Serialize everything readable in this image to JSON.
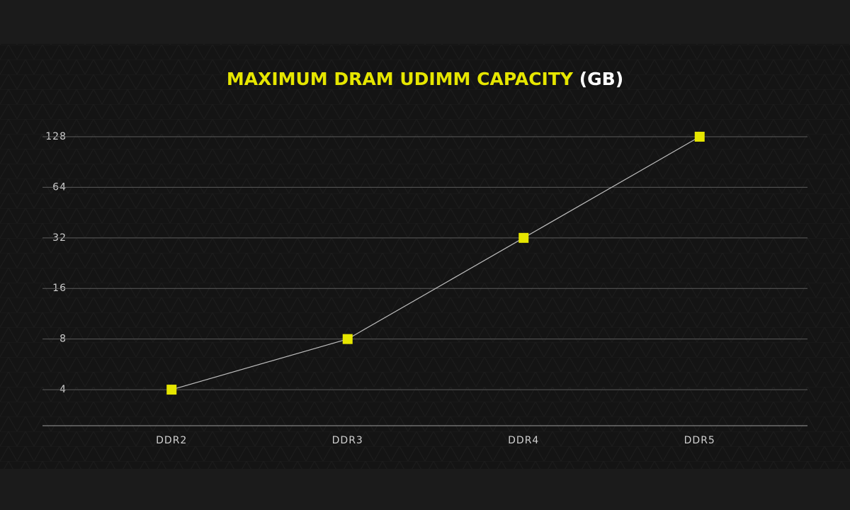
{
  "chart_data": {
    "type": "line",
    "title": "MAXIMUM DRAM UDIMM CAPACITY",
    "title_unit": "(GB)",
    "categories": [
      "DDR2",
      "DDR3",
      "DDR4",
      "DDR5"
    ],
    "values": [
      4,
      8,
      32,
      128
    ],
    "color": "#e6e600",
    "line_color": "#bdbdbd",
    "log_scale": true,
    "ylim": [
      2.44,
      128
    ],
    "yticks": [
      4,
      8,
      16,
      32,
      64,
      128
    ],
    "grid": true
  }
}
